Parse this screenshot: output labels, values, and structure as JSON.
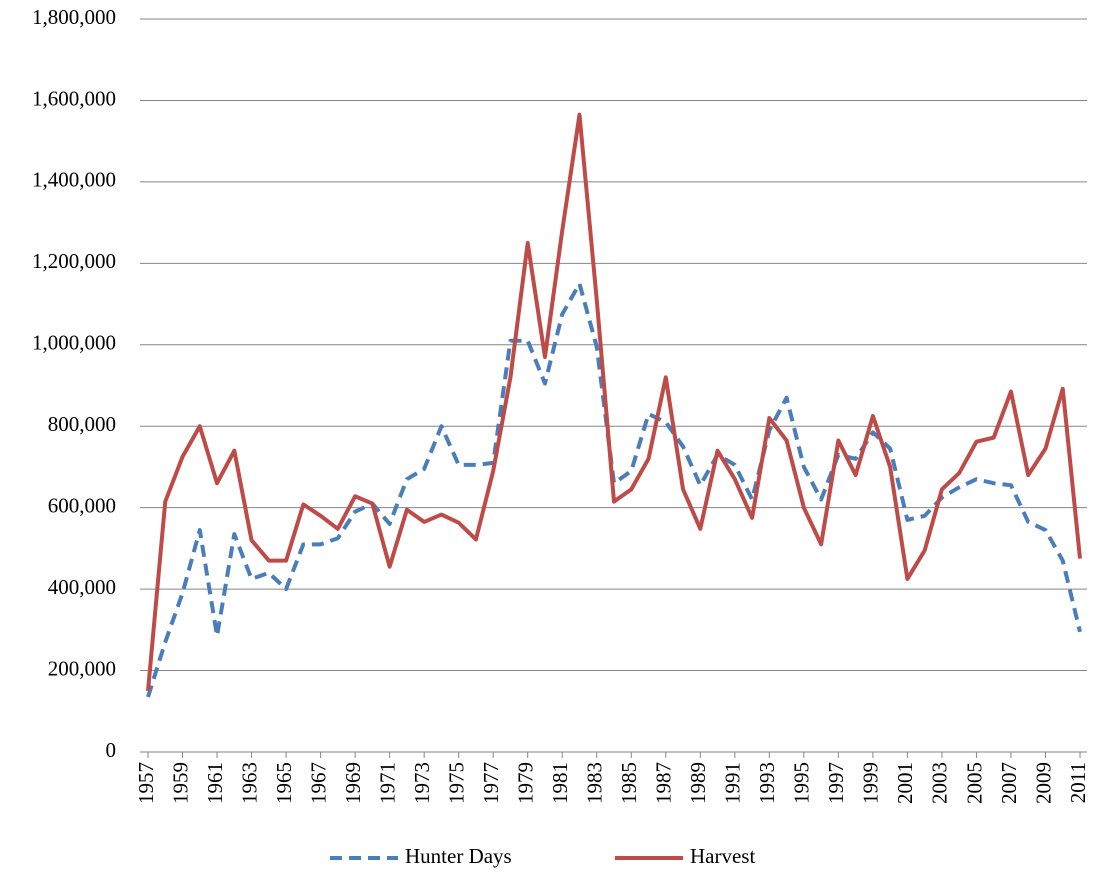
{
  "chart_data": {
    "type": "line",
    "x": [
      1957,
      1958,
      1959,
      1960,
      1961,
      1962,
      1963,
      1964,
      1965,
      1966,
      1967,
      1968,
      1969,
      1970,
      1971,
      1972,
      1973,
      1974,
      1975,
      1976,
      1977,
      1978,
      1979,
      1980,
      1981,
      1982,
      1983,
      1984,
      1985,
      1986,
      1987,
      1988,
      1989,
      1990,
      1991,
      1992,
      1993,
      1994,
      1995,
      1996,
      1997,
      1998,
      1999,
      2000,
      2001,
      2002,
      2003,
      2004,
      2005,
      2006,
      2007,
      2008,
      2009,
      2010,
      2011
    ],
    "xlim": [
      1957,
      2011
    ],
    "xticks": [
      1957,
      1959,
      1961,
      1963,
      1965,
      1967,
      1969,
      1971,
      1973,
      1975,
      1977,
      1979,
      1981,
      1983,
      1985,
      1987,
      1989,
      1991,
      1993,
      1995,
      1997,
      1999,
      2001,
      2003,
      2005,
      2007,
      2009,
      2011
    ],
    "ylim": [
      0,
      1800000
    ],
    "yticks": [
      0,
      {
        "value": 200000,
        "label": "200,000"
      },
      {
        "value": 400000,
        "label": "400,000"
      },
      {
        "value": 600000,
        "label": "600,000"
      },
      {
        "value": 800000,
        "label": "800,000"
      },
      {
        "value": 1000000,
        "label": "1,000,000"
      },
      {
        "value": 1200000,
        "label": "1,200,000"
      },
      {
        "value": 1400000,
        "label": "1,400,000"
      },
      {
        "value": 1600000,
        "label": "1,600,000"
      },
      {
        "value": 1800000,
        "label": "1,800,000"
      }
    ],
    "grid": true,
    "legend": "bottom",
    "series": [
      {
        "name": "Hunter Days",
        "color": "#4a7ebb",
        "dashed": true,
        "values": [
          135000,
          270000,
          390000,
          545000,
          285000,
          535000,
          425000,
          440000,
          400000,
          510000,
          510000,
          525000,
          590000,
          610000,
          560000,
          670000,
          695000,
          800000,
          705000,
          705000,
          710000,
          1010000,
          1010000,
          905000,
          1075000,
          1150000,
          995000,
          660000,
          690000,
          830000,
          810000,
          750000,
          655000,
          730000,
          705000,
          620000,
          790000,
          870000,
          700000,
          620000,
          730000,
          720000,
          785000,
          745000,
          570000,
          580000,
          625000,
          650000,
          670000,
          660000,
          655000,
          565000,
          545000,
          470000,
          295000
        ]
      },
      {
        "name": "Harvest",
        "color": "#be4b48",
        "dashed": false,
        "values": [
          150000,
          615000,
          725000,
          800000,
          660000,
          740000,
          520000,
          470000,
          470000,
          608000,
          580000,
          548000,
          628000,
          610000,
          455000,
          595000,
          565000,
          583000,
          563000,
          522000,
          690000,
          920000,
          1250000,
          970000,
          1280000,
          1565000,
          1110000,
          615000,
          645000,
          720000,
          920000,
          645000,
          548000,
          740000,
          670000,
          575000,
          820000,
          765000,
          600000,
          510000,
          765000,
          680000,
          825000,
          700000,
          425000,
          495000,
          645000,
          685000,
          762000,
          772000,
          885000,
          680000,
          745000,
          892000,
          475000
        ]
      }
    ]
  }
}
